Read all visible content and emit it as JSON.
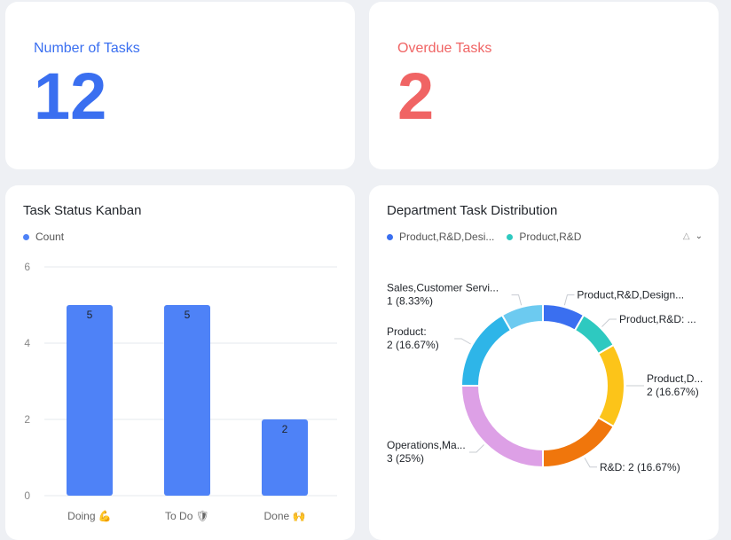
{
  "kpis": {
    "tasks": {
      "label": "Number of Tasks",
      "value": "12",
      "color": "#3a6ff0"
    },
    "overdue": {
      "label": "Overdue Tasks",
      "value": "2",
      "color": "#f06464"
    }
  },
  "kanban": {
    "title": "Task Status Kanban",
    "legend": "Count"
  },
  "dept": {
    "title": "Department Task Distribution",
    "legend": [
      "Product,R&D,Desi...",
      "Product,R&D"
    ],
    "legend_colors": [
      "#3a6ff0",
      "#2ec9c0"
    ]
  },
  "chart_data": [
    {
      "type": "bar",
      "title": "Task Status Kanban",
      "categories": [
        "Doing 💪",
        "To Do 🛡",
        "Done 🙌"
      ],
      "series": [
        {
          "name": "Count",
          "values": [
            5,
            5,
            2
          ],
          "color": "#4e82f7"
        }
      ],
      "ylim": [
        0,
        6
      ],
      "yticks": [
        0,
        2,
        4,
        6
      ],
      "grid": true,
      "legend": "top-left"
    },
    {
      "type": "pie",
      "title": "Department Task Distribution",
      "donut": true,
      "slices": [
        {
          "label": "Product,R&D,Design...",
          "value": 1,
          "percent": "8.33%",
          "color": "#3a6ff0",
          "display": "Product,R&D,Design..."
        },
        {
          "label": "Product,R&D",
          "value": 1,
          "percent": "8.33%",
          "color": "#2ec9c0",
          "display": "Product,R&D: ..."
        },
        {
          "label": "Product,D...",
          "value": 2,
          "percent": "16.67%",
          "color": "#fcc419",
          "display": "Product,D...",
          "display2": "2 (16.67%)"
        },
        {
          "label": "R&D",
          "value": 2,
          "percent": "16.67%",
          "color": "#f0760c",
          "display": "R&D: 2 (16.67%)"
        },
        {
          "label": "Operations,Ma...",
          "value": 3,
          "percent": "25%",
          "color": "#dda0e6",
          "display": "Operations,Ma...",
          "display2": "3 (25%)"
        },
        {
          "label": "Product:",
          "value": 2,
          "percent": "16.67%",
          "color": "#2eb5e8",
          "display": "Product:",
          "display2": "2 (16.67%)"
        },
        {
          "label": "Sales,Customer Servi...",
          "value": 1,
          "percent": "8.33%",
          "color": "#6ccaf0",
          "display": "Sales,Customer Servi...",
          "display2": "1 (8.33%)"
        }
      ]
    }
  ]
}
